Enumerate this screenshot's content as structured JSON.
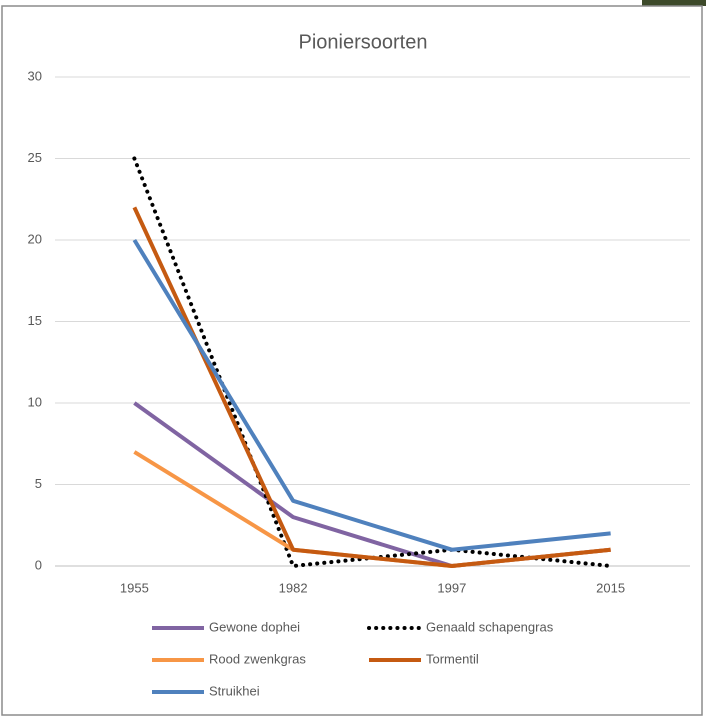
{
  "chart_data": {
    "type": "line",
    "title": "Pioniersoorten",
    "categories": [
      "1955",
      "1982",
      "1997",
      "2015"
    ],
    "series": [
      {
        "name": "Gewone dophei",
        "color": "#8064a2",
        "values": [
          10,
          3,
          0,
          1
        ]
      },
      {
        "name": "Genaald schapengras",
        "color": "#000000",
        "dash": true,
        "values": [
          25,
          0,
          1,
          0
        ]
      },
      {
        "name": "Rood zwenkgras",
        "color": "#f79646",
        "values": [
          7,
          1,
          0,
          1
        ]
      },
      {
        "name": "Tormentil",
        "color": "#c55a11",
        "values": [
          22,
          1,
          0,
          1
        ]
      },
      {
        "name": "Struikhei",
        "color": "#4f81bd",
        "values": [
          20,
          4,
          1,
          2
        ]
      }
    ],
    "ylim": [
      0,
      30
    ],
    "yticks": [
      0,
      5,
      10,
      15,
      20,
      25,
      30
    ],
    "grid": true
  }
}
